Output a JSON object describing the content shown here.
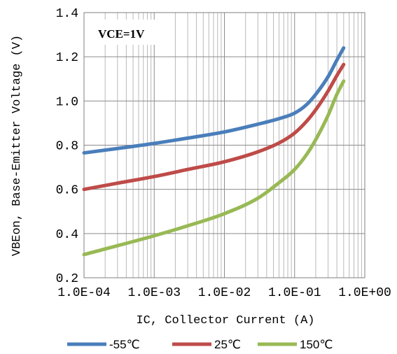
{
  "chart_data": {
    "type": "line",
    "xscale": "log",
    "xlim": [
      0.0001,
      1
    ],
    "ylim": [
      0.2,
      1.4
    ],
    "xlabel": "IC, Collector Current (A)",
    "ylabel": "VBEon, Base-Emitter Voltage (V)",
    "annotation": "VCE=1V",
    "x_tick_labels": [
      "1.0E-04",
      "1.0E-03",
      "1.0E-02",
      "1.0E-01",
      "1.0E+00"
    ],
    "y_tick_labels": [
      "0.2",
      "0.4",
      "0.6",
      "0.8",
      "1.0",
      "1.2",
      "1.4"
    ],
    "y_ticks": [
      0.2,
      0.4,
      0.6,
      0.8,
      1.0,
      1.2,
      1.4
    ],
    "legend_position": "bottom",
    "grid": true,
    "series": [
      {
        "name": "-55℃",
        "color": "#4a7ebb",
        "x": [
          0.0001,
          0.0003,
          0.001,
          0.003,
          0.01,
          0.03,
          0.06,
          0.1,
          0.15,
          0.2,
          0.3,
          0.4,
          0.5
        ],
        "y": [
          0.765,
          0.785,
          0.808,
          0.832,
          0.86,
          0.895,
          0.92,
          0.945,
          0.985,
          1.03,
          1.11,
          1.185,
          1.24
        ]
      },
      {
        "name": "25℃",
        "color": "#be4b48",
        "x": [
          0.0001,
          0.0003,
          0.001,
          0.003,
          0.01,
          0.03,
          0.06,
          0.1,
          0.15,
          0.2,
          0.3,
          0.4,
          0.5
        ],
        "y": [
          0.6,
          0.628,
          0.658,
          0.69,
          0.725,
          0.77,
          0.81,
          0.855,
          0.91,
          0.96,
          1.045,
          1.115,
          1.165
        ]
      },
      {
        "name": "150℃",
        "color": "#98b954",
        "x": [
          0.0001,
          0.0003,
          0.001,
          0.003,
          0.01,
          0.03,
          0.06,
          0.1,
          0.15,
          0.2,
          0.3,
          0.4,
          0.5
        ],
        "y": [
          0.305,
          0.345,
          0.39,
          0.435,
          0.49,
          0.56,
          0.63,
          0.69,
          0.76,
          0.825,
          0.935,
          1.03,
          1.09
        ]
      }
    ]
  }
}
